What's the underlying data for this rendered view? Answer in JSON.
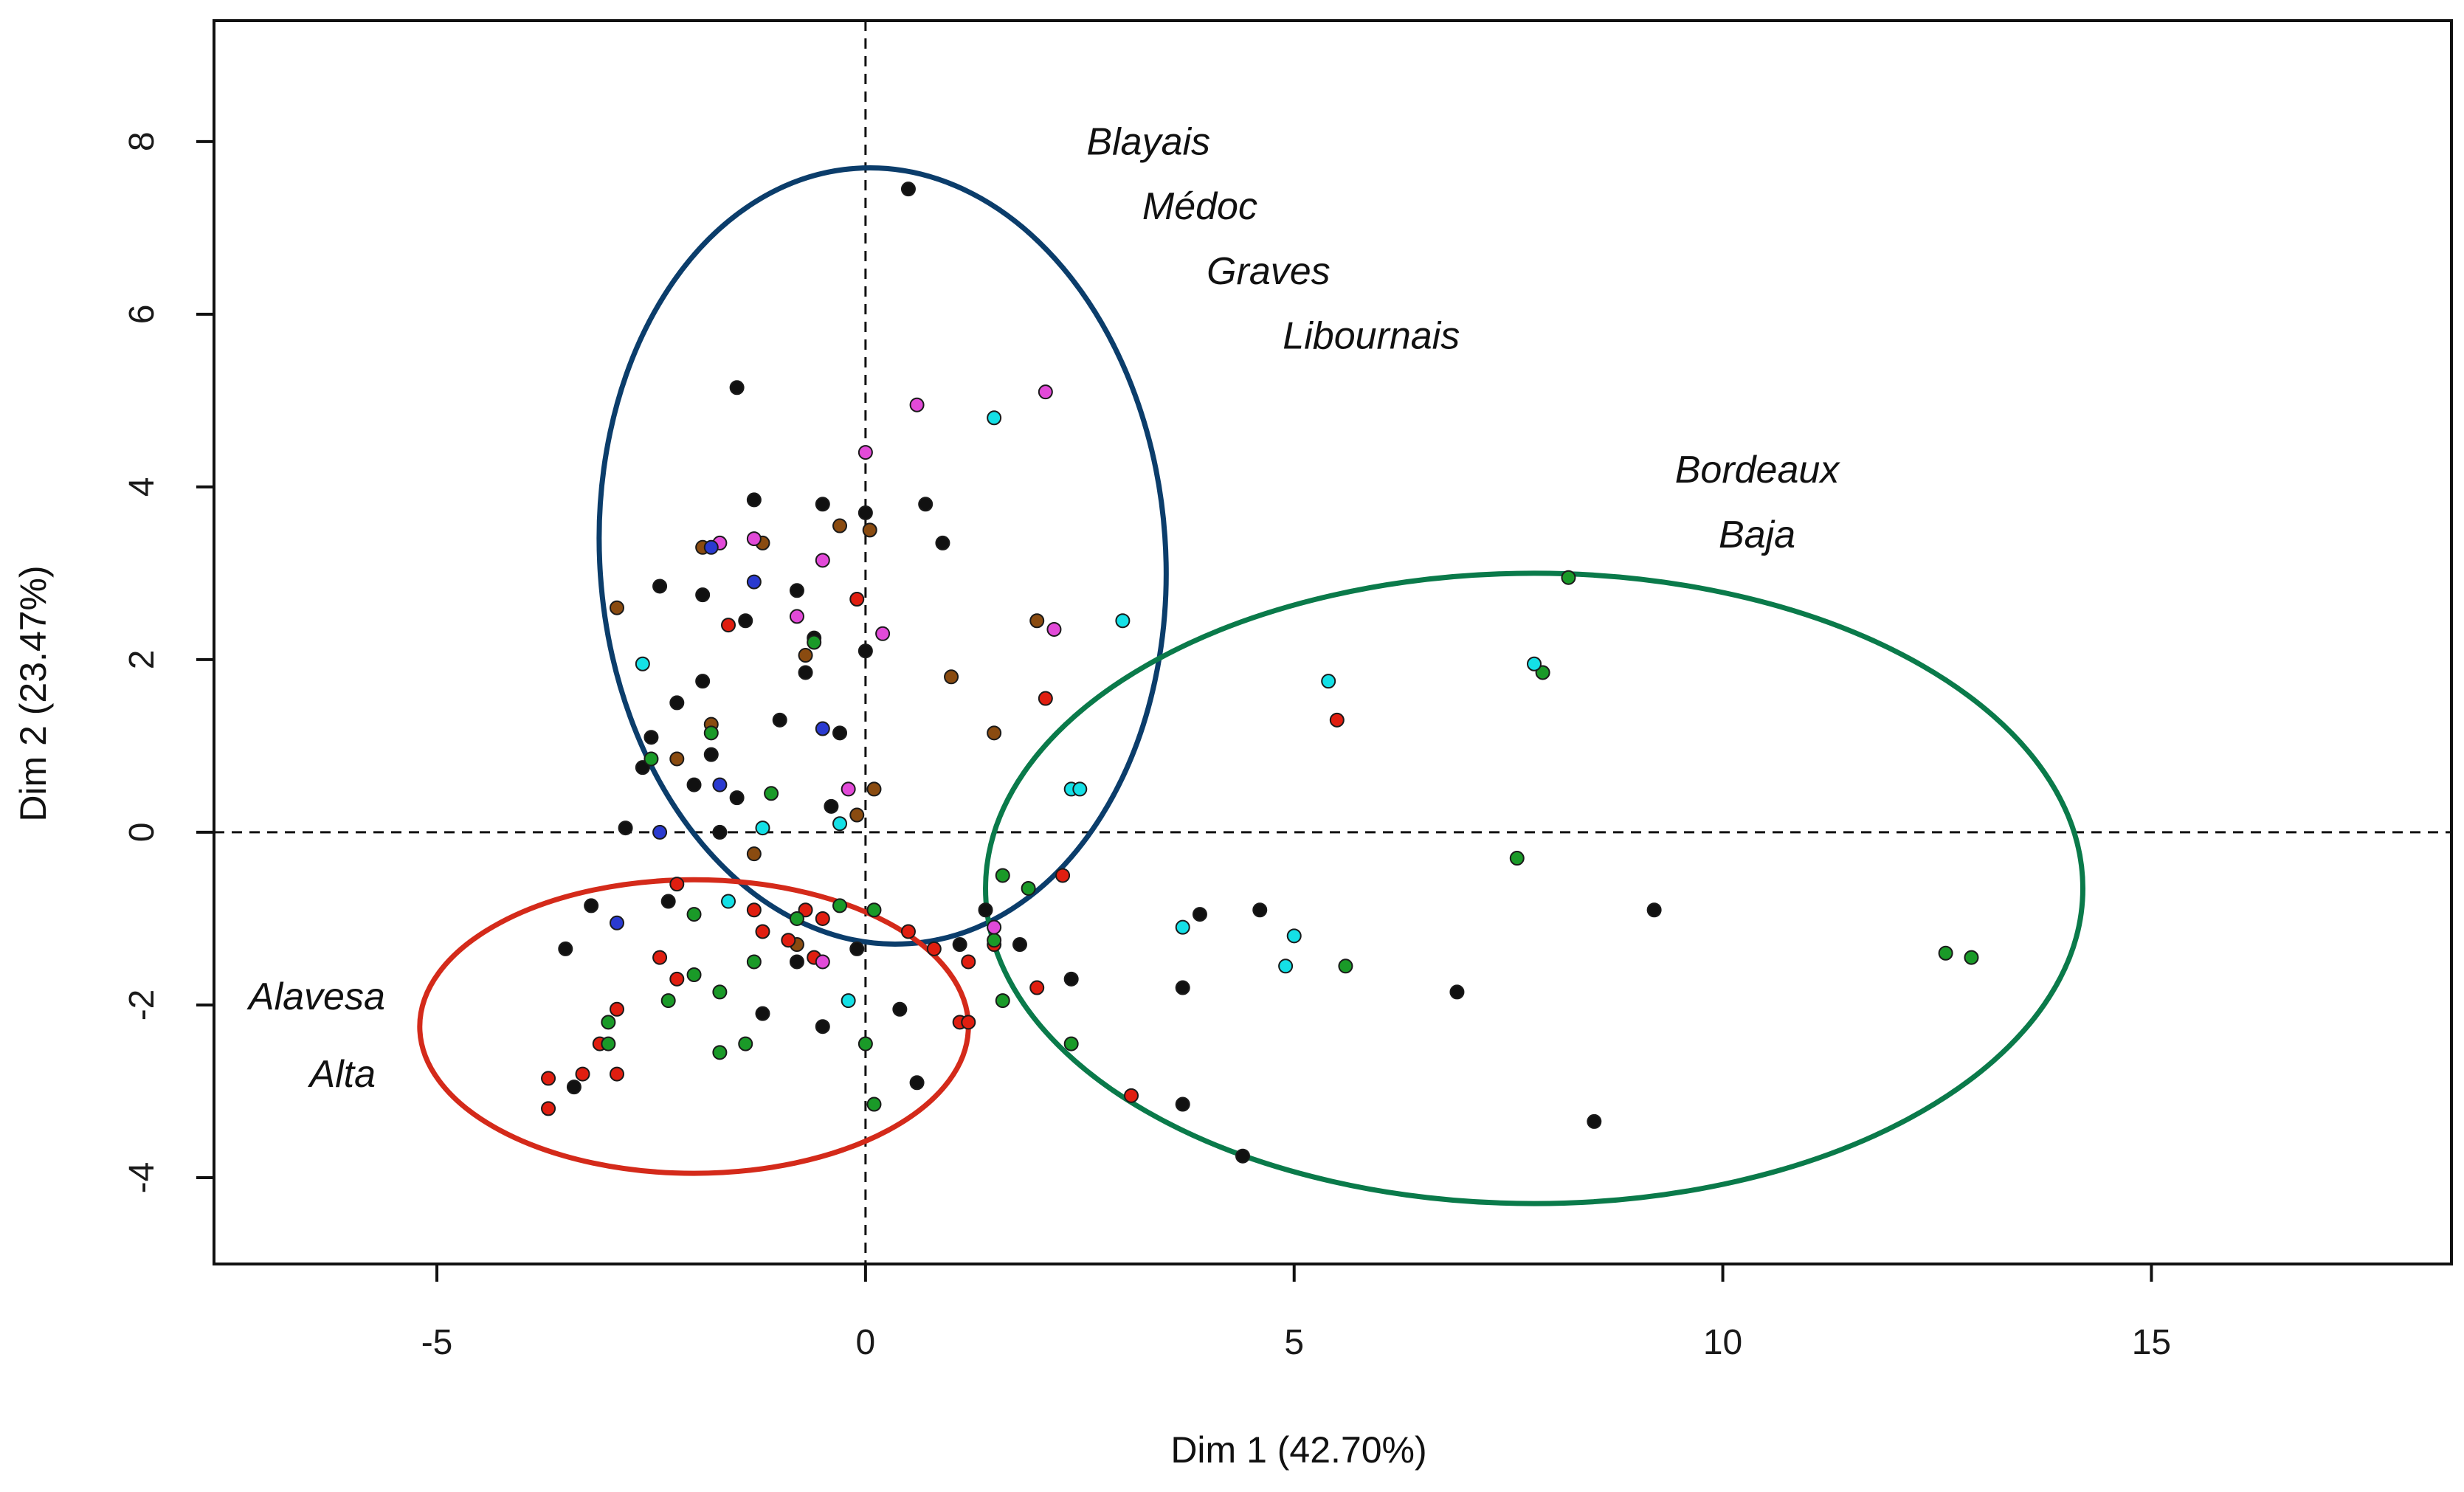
{
  "chart_data": {
    "type": "scatter",
    "title": "",
    "xlabel": "Dim 1 (42.70%)",
    "ylabel": "Dim 2 (23.47%)",
    "xlim": [
      -7.6,
      18.5
    ],
    "ylim": [
      -5.0,
      9.4
    ],
    "x_ticks": [
      -5,
      0,
      5,
      10,
      15
    ],
    "y_ticks": [
      -4,
      -2,
      0,
      2,
      4,
      6,
      8
    ],
    "x_tick_labels": [
      "-5",
      "0",
      "5",
      "10",
      "15"
    ],
    "y_tick_labels": [
      "-4",
      "-2",
      "0",
      "2",
      "4",
      "6",
      "8"
    ],
    "reference_lines": {
      "x": 0,
      "y": 0,
      "style": "dashed"
    },
    "grid": false,
    "region_labels": [
      {
        "text": "Blayais",
        "x": 3.3,
        "y": 7.85
      },
      {
        "text": "Médoc",
        "x": 3.9,
        "y": 7.1
      },
      {
        "text": "Graves",
        "x": 4.7,
        "y": 6.35
      },
      {
        "text": "Libournais",
        "x": 5.9,
        "y": 5.6
      },
      {
        "text": "Bordeaux",
        "x": 10.4,
        "y": 4.05
      },
      {
        "text": "Baja",
        "x": 10.4,
        "y": 3.3
      },
      {
        "text": "Alavesa",
        "x": -6.4,
        "y": -2.05
      },
      {
        "text": "Alta",
        "x": -6.1,
        "y": -2.95
      }
    ],
    "ellipses": [
      {
        "name": "Bordeaux (Blayais, Médoc, Graves, Libournais)",
        "color": "#0b3d6b",
        "cx": 0.2,
        "cy": 3.2,
        "rx": 3.3,
        "ry": 4.5,
        "rotation_deg": 4
      },
      {
        "name": "Bordeaux Baja",
        "color": "#0a7a4a",
        "cx": 7.8,
        "cy": -0.65,
        "rx": 6.4,
        "ry": 3.65,
        "rotation_deg": 0
      },
      {
        "name": "Alavesa / Alta",
        "color": "#d42a1a",
        "cx": -2.0,
        "cy": -2.25,
        "rx": 3.2,
        "ry": 1.7,
        "rotation_deg": 0
      }
    ],
    "series": [
      {
        "name": "black",
        "color": "#111111",
        "points": [
          [
            0.5,
            7.45
          ],
          [
            -1.5,
            5.15
          ],
          [
            -1.3,
            3.85
          ],
          [
            -0.5,
            3.8
          ],
          [
            0.7,
            3.8
          ],
          [
            0.0,
            3.7
          ],
          [
            0.9,
            3.35
          ],
          [
            -2.4,
            2.85
          ],
          [
            -1.9,
            2.75
          ],
          [
            -0.8,
            2.8
          ],
          [
            -1.4,
            2.45
          ],
          [
            -0.6,
            2.25
          ],
          [
            0.0,
            2.1
          ],
          [
            -0.7,
            1.85
          ],
          [
            -1.9,
            1.75
          ],
          [
            -2.2,
            1.5
          ],
          [
            -1.0,
            1.3
          ],
          [
            -0.3,
            1.15
          ],
          [
            -2.5,
            1.1
          ],
          [
            -1.8,
            0.9
          ],
          [
            -2.6,
            0.75
          ],
          [
            -2.0,
            0.55
          ],
          [
            -1.5,
            0.4
          ],
          [
            -0.4,
            0.3
          ],
          [
            -1.7,
            0.0
          ],
          [
            -2.8,
            0.05
          ],
          [
            1.4,
            -0.9
          ],
          [
            1.8,
            -1.3
          ],
          [
            -0.1,
            -1.35
          ],
          [
            -0.8,
            -1.5
          ],
          [
            -3.5,
            -1.35
          ],
          [
            -3.2,
            -0.85
          ],
          [
            -2.3,
            -0.8
          ],
          [
            3.9,
            -0.95
          ],
          [
            4.6,
            -0.9
          ],
          [
            9.2,
            -0.9
          ],
          [
            2.4,
            -1.7
          ],
          [
            3.7,
            -1.8
          ],
          [
            6.9,
            -1.85
          ],
          [
            -1.2,
            -2.1
          ],
          [
            0.4,
            -2.05
          ],
          [
            -0.5,
            -2.25
          ],
          [
            3.7,
            -3.15
          ],
          [
            8.5,
            -3.35
          ],
          [
            4.4,
            -3.75
          ],
          [
            0.6,
            -2.9
          ],
          [
            -3.4,
            -2.95
          ],
          [
            1.1,
            -1.3
          ]
        ]
      },
      {
        "name": "brown",
        "color": "#8a4b10",
        "points": [
          [
            -1.9,
            3.3
          ],
          [
            -1.2,
            3.35
          ],
          [
            -0.3,
            3.55
          ],
          [
            0.05,
            3.5
          ],
          [
            -2.9,
            2.6
          ],
          [
            2.0,
            2.45
          ],
          [
            -0.7,
            2.05
          ],
          [
            1.0,
            1.8
          ],
          [
            -1.8,
            1.25
          ],
          [
            1.5,
            1.15
          ],
          [
            -2.2,
            0.85
          ],
          [
            0.1,
            0.5
          ],
          [
            -0.1,
            0.2
          ],
          [
            -1.3,
            -0.25
          ],
          [
            -0.8,
            -1.3
          ]
        ]
      },
      {
        "name": "red",
        "color": "#e01e10",
        "points": [
          [
            -0.1,
            2.7
          ],
          [
            -1.6,
            2.4
          ],
          [
            2.1,
            1.55
          ],
          [
            5.5,
            1.3
          ],
          [
            2.3,
            -0.5
          ],
          [
            -2.2,
            -0.6
          ],
          [
            -1.3,
            -0.9
          ],
          [
            -0.7,
            -0.9
          ],
          [
            -0.5,
            -1.0
          ],
          [
            -1.2,
            -1.15
          ],
          [
            -0.9,
            -1.25
          ],
          [
            0.5,
            -1.15
          ],
          [
            1.5,
            -1.3
          ],
          [
            0.8,
            -1.35
          ],
          [
            -2.4,
            -1.45
          ],
          [
            -0.6,
            -1.45
          ],
          [
            1.2,
            -1.5
          ],
          [
            -2.2,
            -1.7
          ],
          [
            2.0,
            -1.8
          ],
          [
            -2.9,
            -2.05
          ],
          [
            1.1,
            -2.2
          ],
          [
            -3.1,
            -2.45
          ],
          [
            -3.3,
            -2.8
          ],
          [
            -3.7,
            -2.85
          ],
          [
            -2.9,
            -2.8
          ],
          [
            3.1,
            -3.05
          ],
          [
            -3.7,
            -3.2
          ],
          [
            1.2,
            -2.2
          ]
        ]
      },
      {
        "name": "green",
        "color": "#1a9a28",
        "points": [
          [
            -0.6,
            2.2
          ],
          [
            -1.8,
            1.15
          ],
          [
            -1.1,
            0.45
          ],
          [
            -2.5,
            0.85
          ],
          [
            8.2,
            2.95
          ],
          [
            7.9,
            1.85
          ],
          [
            7.6,
            -0.3
          ],
          [
            1.6,
            -0.5
          ],
          [
            1.9,
            -0.65
          ],
          [
            -2.0,
            -0.95
          ],
          [
            0.1,
            -0.9
          ],
          [
            -0.8,
            -1.0
          ],
          [
            -0.3,
            -0.85
          ],
          [
            1.5,
            -1.25
          ],
          [
            -1.3,
            -1.5
          ],
          [
            12.6,
            -1.4
          ],
          [
            12.9,
            -1.45
          ],
          [
            5.6,
            -1.55
          ],
          [
            -2.0,
            -1.65
          ],
          [
            -1.7,
            -1.85
          ],
          [
            1.6,
            -1.95
          ],
          [
            -2.3,
            -1.95
          ],
          [
            -3.0,
            -2.2
          ],
          [
            2.4,
            -2.45
          ],
          [
            -3.0,
            -2.45
          ],
          [
            -1.4,
            -2.45
          ],
          [
            -1.7,
            -2.55
          ],
          [
            0.0,
            -2.45
          ],
          [
            0.1,
            -3.15
          ]
        ]
      },
      {
        "name": "cyan",
        "color": "#14e0e6",
        "points": [
          [
            1.5,
            4.8
          ],
          [
            3.0,
            2.45
          ],
          [
            -2.6,
            1.95
          ],
          [
            7.8,
            1.95
          ],
          [
            5.4,
            1.75
          ],
          [
            2.4,
            0.5
          ],
          [
            2.5,
            0.5
          ],
          [
            -1.2,
            0.05
          ],
          [
            -0.3,
            0.1
          ],
          [
            3.7,
            -1.1
          ],
          [
            5.0,
            -1.2
          ],
          [
            4.9,
            -1.55
          ],
          [
            -0.2,
            -1.95
          ],
          [
            -1.6,
            -0.8
          ]
        ]
      },
      {
        "name": "magenta",
        "color": "#e24ad8",
        "points": [
          [
            2.1,
            5.1
          ],
          [
            0.6,
            4.95
          ],
          [
            0.0,
            4.4
          ],
          [
            -1.7,
            3.35
          ],
          [
            -1.3,
            3.4
          ],
          [
            -0.5,
            3.15
          ],
          [
            -0.8,
            2.5
          ],
          [
            0.2,
            2.3
          ],
          [
            2.2,
            2.35
          ],
          [
            -0.2,
            0.5
          ],
          [
            -0.5,
            -1.5
          ],
          [
            1.5,
            -1.1
          ]
        ]
      },
      {
        "name": "blue",
        "color": "#2a3ad0",
        "points": [
          [
            -1.8,
            3.3
          ],
          [
            -1.3,
            2.9
          ],
          [
            -1.7,
            0.55
          ],
          [
            -2.4,
            0.0
          ],
          [
            -2.9,
            -1.05
          ],
          [
            -0.5,
            1.2
          ]
        ]
      }
    ]
  }
}
